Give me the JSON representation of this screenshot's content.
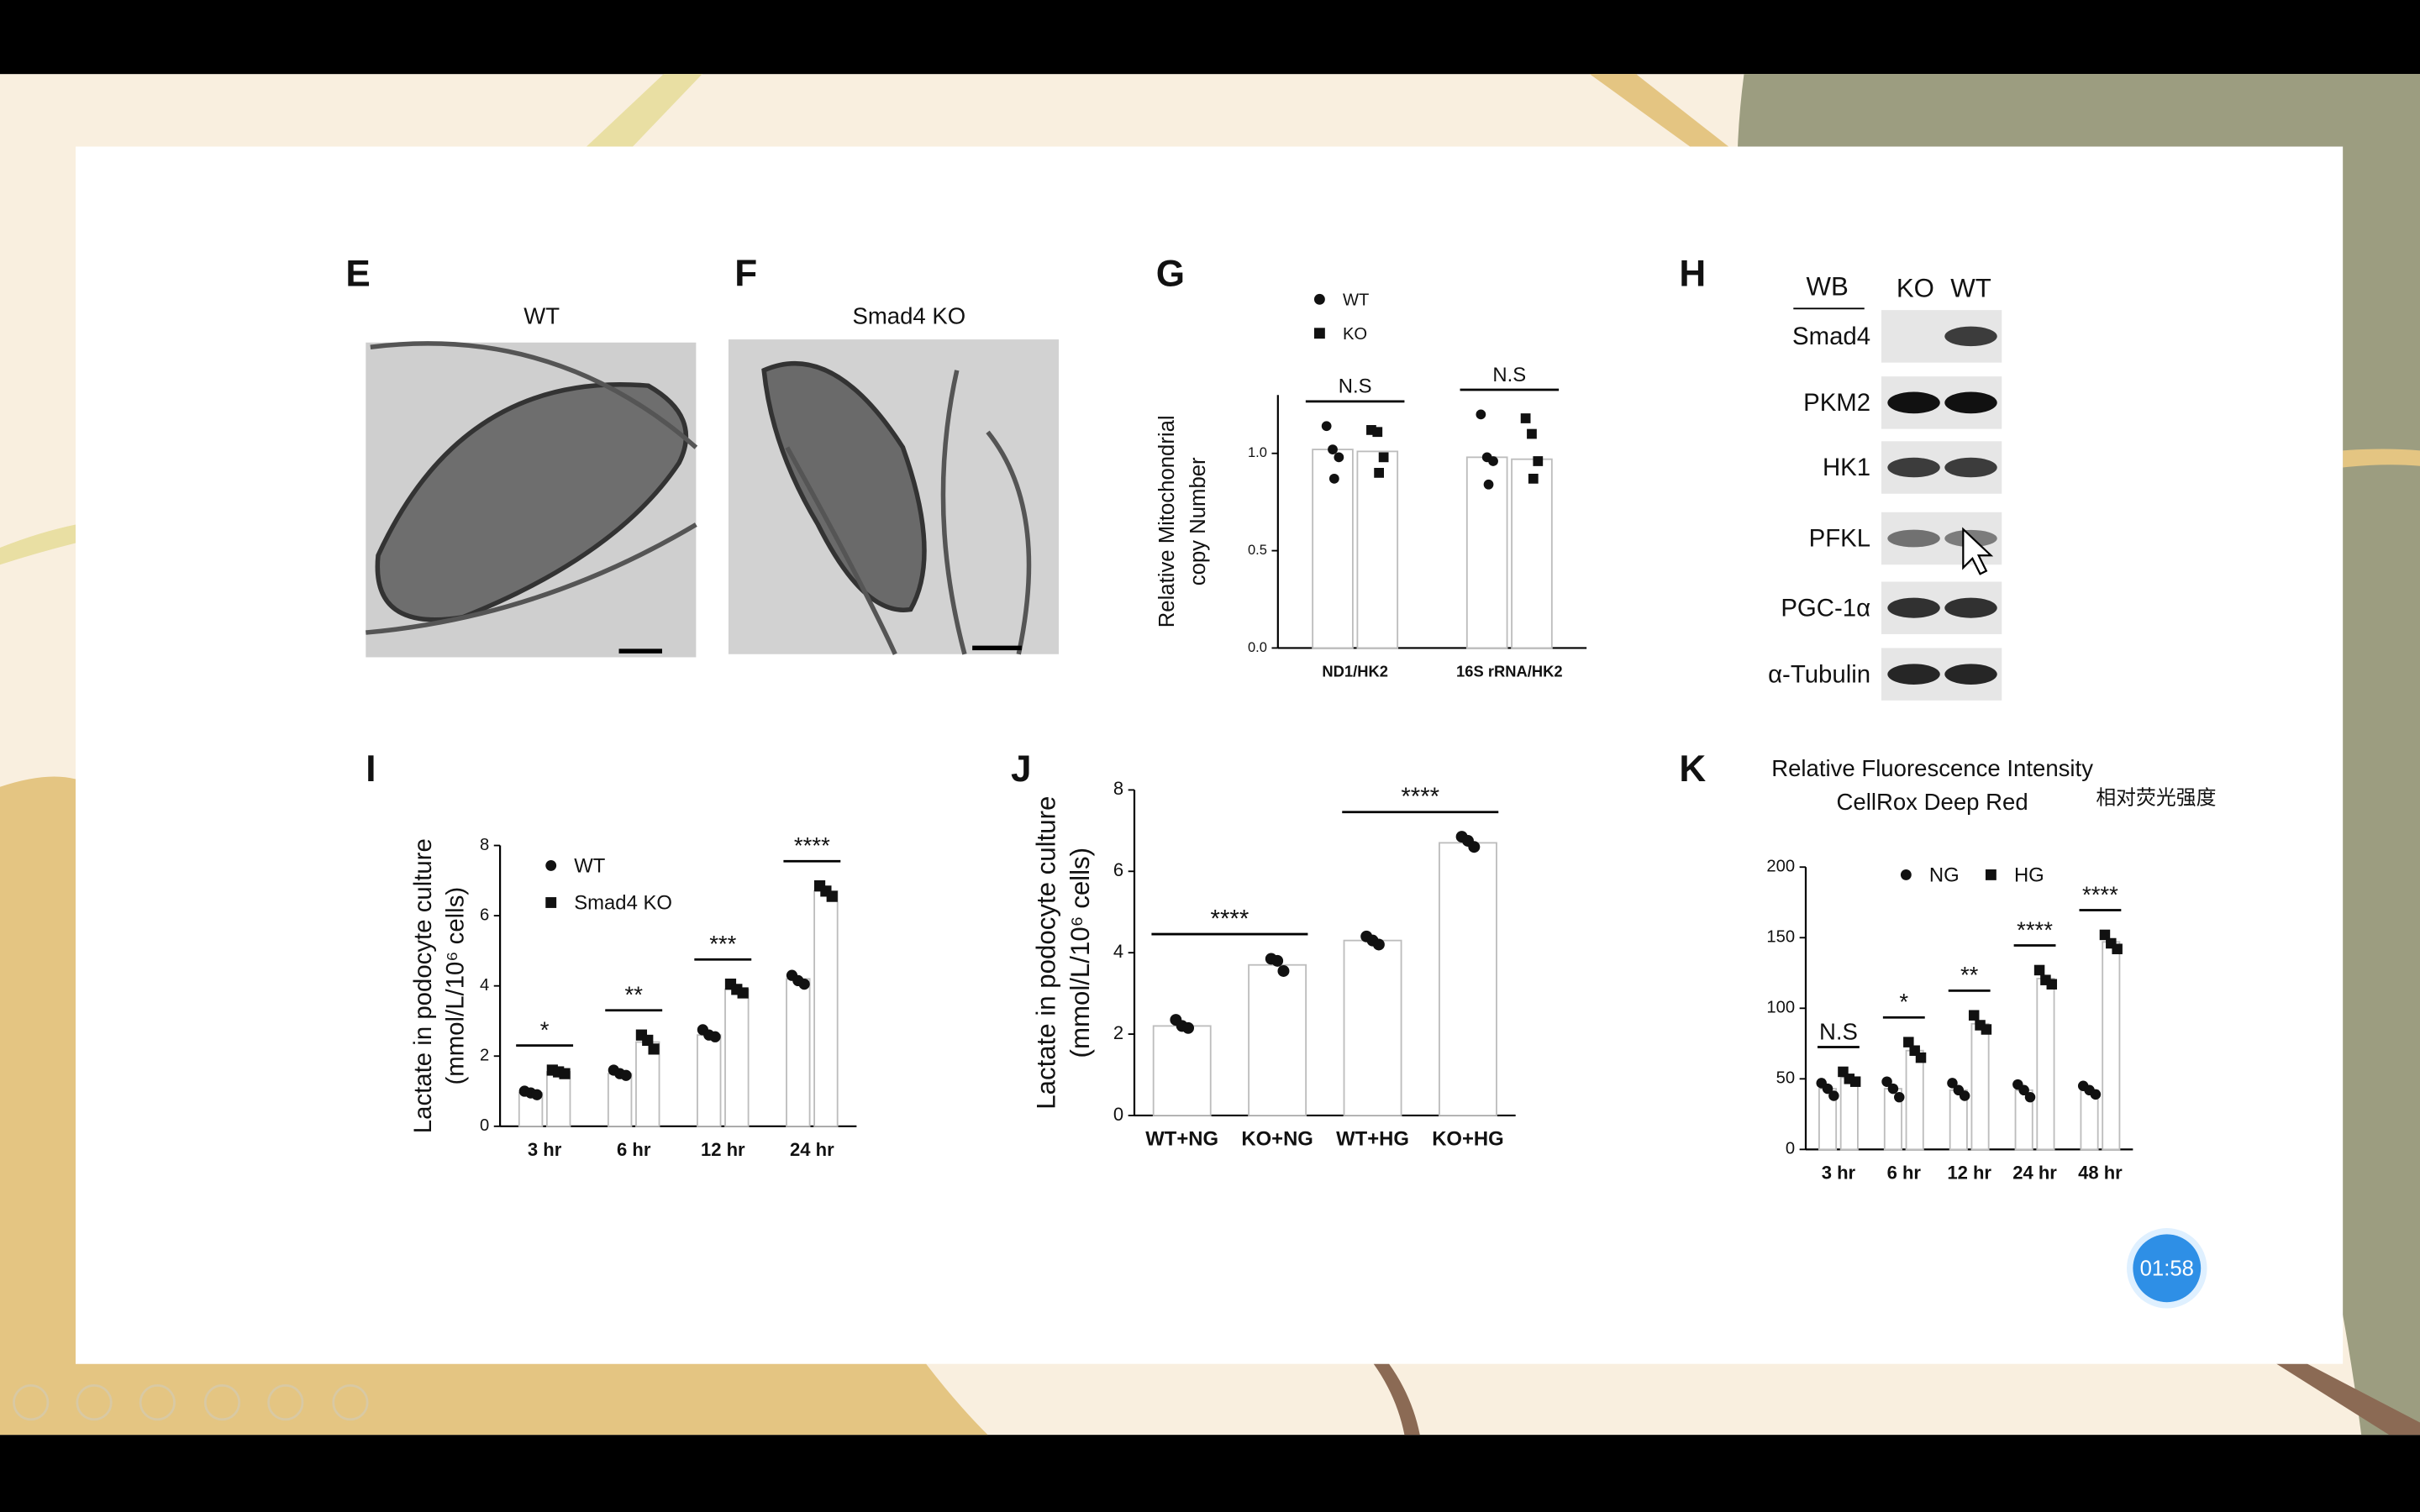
{
  "slide": {
    "panels": [
      "E",
      "F",
      "G",
      "H",
      "I",
      "J",
      "K"
    ],
    "images": [
      {
        "title": "WT"
      },
      {
        "title": "Smad4 KO"
      }
    ],
    "blot": {
      "header": "WB",
      "lanes": [
        "KO",
        "WT"
      ],
      "rows": [
        "Smad4",
        "PKM2",
        "HK1",
        "PFKL",
        "PGC-1α",
        "α-Tubulin"
      ]
    },
    "timer": "01:58"
  },
  "chart_data": [
    {
      "type": "bar",
      "ylabel": [
        "Relative Mitochondrial",
        "copy Number"
      ],
      "categories": [
        "ND1/HK2",
        "16S rRNA/HK2"
      ],
      "series": [
        {
          "name": "WT",
          "marker": "circle",
          "color": "#111111",
          "values": [
            1.02,
            0.98
          ],
          "points": [
            [
              1.14,
              1.02,
              0.98,
              0.87
            ],
            [
              1.2,
              0.98,
              0.96,
              0.84
            ]
          ]
        },
        {
          "name": "KO",
          "marker": "square",
          "color": "#111111",
          "values": [
            1.01,
            0.97
          ],
          "points": [
            [
              1.12,
              1.11,
              0.98,
              0.9
            ],
            [
              1.18,
              1.1,
              0.96,
              0.87
            ]
          ]
        }
      ],
      "significance": [
        "N.S",
        "N.S"
      ],
      "ylim": [
        0,
        1.3
      ],
      "yticks": [
        {
          "value": 0,
          "label": "0.0"
        },
        {
          "value": 0.5,
          "label": "0.5"
        },
        {
          "value": 1,
          "label": "1.0"
        }
      ],
      "legend": "top-left"
    },
    {
      "type": "bar",
      "ylabel": [
        "Lactate in podocyte culture",
        "(mmol/L/10⁶ cells)"
      ],
      "categories": [
        "3 hr",
        "6 hr",
        "12 hr",
        "24 hr"
      ],
      "series": [
        {
          "name": "WT",
          "marker": "circle",
          "color": "#111111",
          "values": [
            0.95,
            1.5,
            2.6,
            4.2
          ],
          "points": [
            [
              1.0,
              0.95,
              0.9
            ],
            [
              1.6,
              1.5,
              1.45
            ],
            [
              2.75,
              2.6,
              2.55
            ],
            [
              4.3,
              4.15,
              4.05
            ]
          ]
        },
        {
          "name": "Smad4 KO",
          "marker": "square",
          "color": "#111111",
          "values": [
            1.55,
            2.4,
            3.9,
            6.7
          ],
          "points": [
            [
              1.6,
              1.55,
              1.5
            ],
            [
              2.6,
              2.45,
              2.2
            ],
            [
              4.05,
              3.9,
              3.8
            ],
            [
              6.85,
              6.7,
              6.55
            ]
          ]
        }
      ],
      "significance": [
        "*",
        "**",
        "***",
        "****"
      ],
      "ylim": [
        0,
        8
      ],
      "yticks": [
        0,
        2,
        4,
        6,
        8
      ],
      "legend": "top-left"
    },
    {
      "type": "bar",
      "ylabel": [
        "Lactate in podocyte culture",
        "(mmol/L/10⁶ cells)"
      ],
      "categories": [
        "WT+NG",
        "KO+NG",
        "WT+HG",
        "KO+HG"
      ],
      "series": [
        {
          "marker": "circle",
          "color": "#111111",
          "values": [
            2.2,
            3.7,
            4.3,
            6.7
          ],
          "points": [
            [
              2.35,
              2.2,
              2.15
            ],
            [
              3.85,
              3.8,
              3.55
            ],
            [
              4.4,
              4.3,
              4.2
            ],
            [
              6.85,
              6.75,
              6.6
            ]
          ]
        }
      ],
      "significance": [
        "****",
        "****"
      ],
      "ylim": [
        0,
        8
      ],
      "yticks": [
        0,
        2,
        4,
        6,
        8
      ]
    },
    {
      "type": "bar",
      "title": [
        "Relative Fluorescence Intensity",
        "CellRox Deep Red"
      ],
      "note": "相对荧光强度",
      "categories": [
        "3 hr",
        "6 hr",
        "12 hr",
        "24 hr",
        "48 hr"
      ],
      "series": [
        {
          "name": "NG",
          "marker": "circle",
          "color": "#111111",
          "values": [
            43,
            43,
            42,
            42,
            42
          ],
          "points": [
            [
              47,
              43,
              38
            ],
            [
              48,
              43,
              37
            ],
            [
              47,
              42,
              38
            ],
            [
              46,
              42,
              37
            ],
            [
              45,
              42,
              39
            ]
          ]
        },
        {
          "name": "HG",
          "marker": "square",
          "color": "#111111",
          "values": [
            51,
            70,
            89,
            121,
            147
          ],
          "points": [
            [
              55,
              50,
              48
            ],
            [
              76,
              70,
              65
            ],
            [
              95,
              88,
              85
            ],
            [
              127,
              120,
              117
            ],
            [
              152,
              146,
              142
            ]
          ]
        }
      ],
      "significance": [
        "N.S",
        "*",
        "**",
        "****",
        "****"
      ],
      "ylim": [
        0,
        200
      ],
      "yticks": [
        0,
        50,
        100,
        150,
        200
      ],
      "legend": "top"
    }
  ]
}
